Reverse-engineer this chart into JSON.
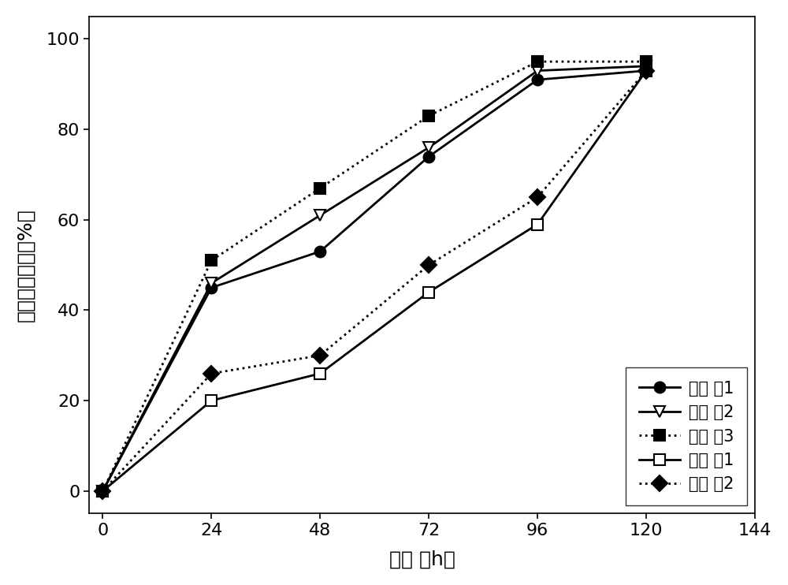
{
  "x": [
    0,
    24,
    48,
    72,
    96,
    120
  ],
  "series": [
    {
      "label": "实施 例1",
      "values": [
        0,
        45,
        53,
        74,
        91,
        93
      ],
      "linestyle": "-",
      "marker": "o",
      "marker_fill": "black",
      "color": "black"
    },
    {
      "label": "实施 例2",
      "values": [
        0,
        46,
        61,
        76,
        93,
        94
      ],
      "linestyle": "-",
      "marker": "v",
      "marker_fill": "white",
      "color": "black"
    },
    {
      "label": "实施 例3",
      "values": [
        0,
        51,
        67,
        83,
        95,
        95
      ],
      "linestyle": ":",
      "marker": "s",
      "marker_fill": "black",
      "color": "black"
    },
    {
      "label": "对比 例1",
      "values": [
        0,
        20,
        26,
        44,
        59,
        93
      ],
      "linestyle": "-",
      "marker": "s",
      "marker_fill": "white",
      "color": "black"
    },
    {
      "label": "对比 例2",
      "values": [
        0,
        26,
        30,
        50,
        65,
        93
      ],
      "linestyle": ":",
      "marker": "D",
      "marker_fill": "black",
      "color": "black"
    }
  ],
  "xlabel": "时间 （h）",
  "ylabel": "蛋白质去除率（%）",
  "xlim": [
    -3,
    144
  ],
  "ylim": [
    -5,
    105
  ],
  "xticks": [
    0,
    24,
    48,
    72,
    96,
    120,
    144
  ],
  "yticks": [
    0,
    20,
    40,
    60,
    80,
    100
  ],
  "title": "",
  "background_color": "#ffffff",
  "legend_loc": "lower right",
  "font_size": 16,
  "label_font_size": 18,
  "marker_size": 10,
  "line_width": 2
}
